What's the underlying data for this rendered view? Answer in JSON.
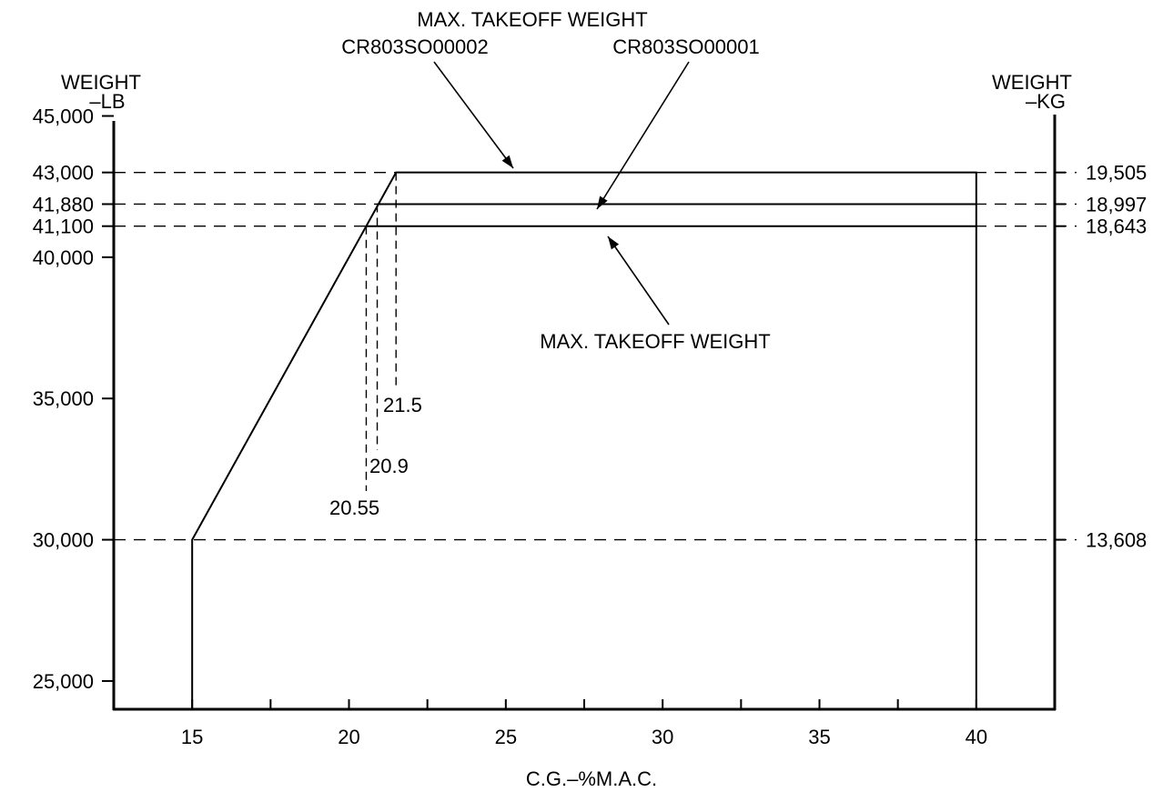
{
  "chart_data": {
    "type": "line",
    "title": "",
    "xlabel": "C.G.–%M.A.C.",
    "ylabel_left": "WEIGHT\n–LB",
    "ylabel_right": "WEIGHT\n–KG",
    "xlim": [
      12.5,
      42.5
    ],
    "ylim": [
      24000,
      45500
    ],
    "x_ticks": [
      15,
      20,
      25,
      30,
      35,
      40
    ],
    "x_minor_ticks": [
      17.5,
      22.5,
      27.5,
      32.5,
      37.5
    ],
    "y_ticks_left": [
      {
        "value": 45000,
        "label": "45,000"
      },
      {
        "value": 43000,
        "label": "43,000"
      },
      {
        "value": 41880,
        "label": "41,880"
      },
      {
        "value": 41100,
        "label": "41,100"
      },
      {
        "value": 40000,
        "label": "40,000"
      },
      {
        "value": 35000,
        "label": "35,000"
      },
      {
        "value": 30000,
        "label": "30,000"
      },
      {
        "value": 25000,
        "label": "25,000"
      }
    ],
    "y_ticks_right": [
      {
        "value": 43000,
        "label": "19,505"
      },
      {
        "value": 41880,
        "label": "18,997"
      },
      {
        "value": 41100,
        "label": "18,643"
      },
      {
        "value": 30000,
        "label": "13,608"
      }
    ],
    "envelope": [
      {
        "x": 15,
        "y": 24000
      },
      {
        "x": 15,
        "y": 30000
      },
      {
        "x": 21.5,
        "y": 43000
      },
      {
        "x": 40,
        "y": 43000
      },
      {
        "x": 40,
        "y": 24000
      }
    ],
    "limit_lines": [
      {
        "name": "CR803SO00001",
        "weight_lb": 41880,
        "x_start": 20.9,
        "x_end": 40
      },
      {
        "name": "MAX. TAKEOFF WEIGHT",
        "weight_lb": 41100,
        "x_start": 20.55,
        "x_end": 40
      }
    ],
    "cg_markers": [
      {
        "x": 21.5,
        "y": 43000,
        "label": "21.5"
      },
      {
        "x": 20.9,
        "y": 41880,
        "label": "20.9"
      },
      {
        "x": 20.55,
        "y": 41100,
        "label": "20.55"
      }
    ],
    "annotations": {
      "top_title": "MAX. TAKEOFF WEIGHT",
      "top_left": "CR803SO00002",
      "top_right": "CR803SO00001",
      "bottom": "MAX. TAKEOFF WEIGHT"
    },
    "grid": false
  }
}
